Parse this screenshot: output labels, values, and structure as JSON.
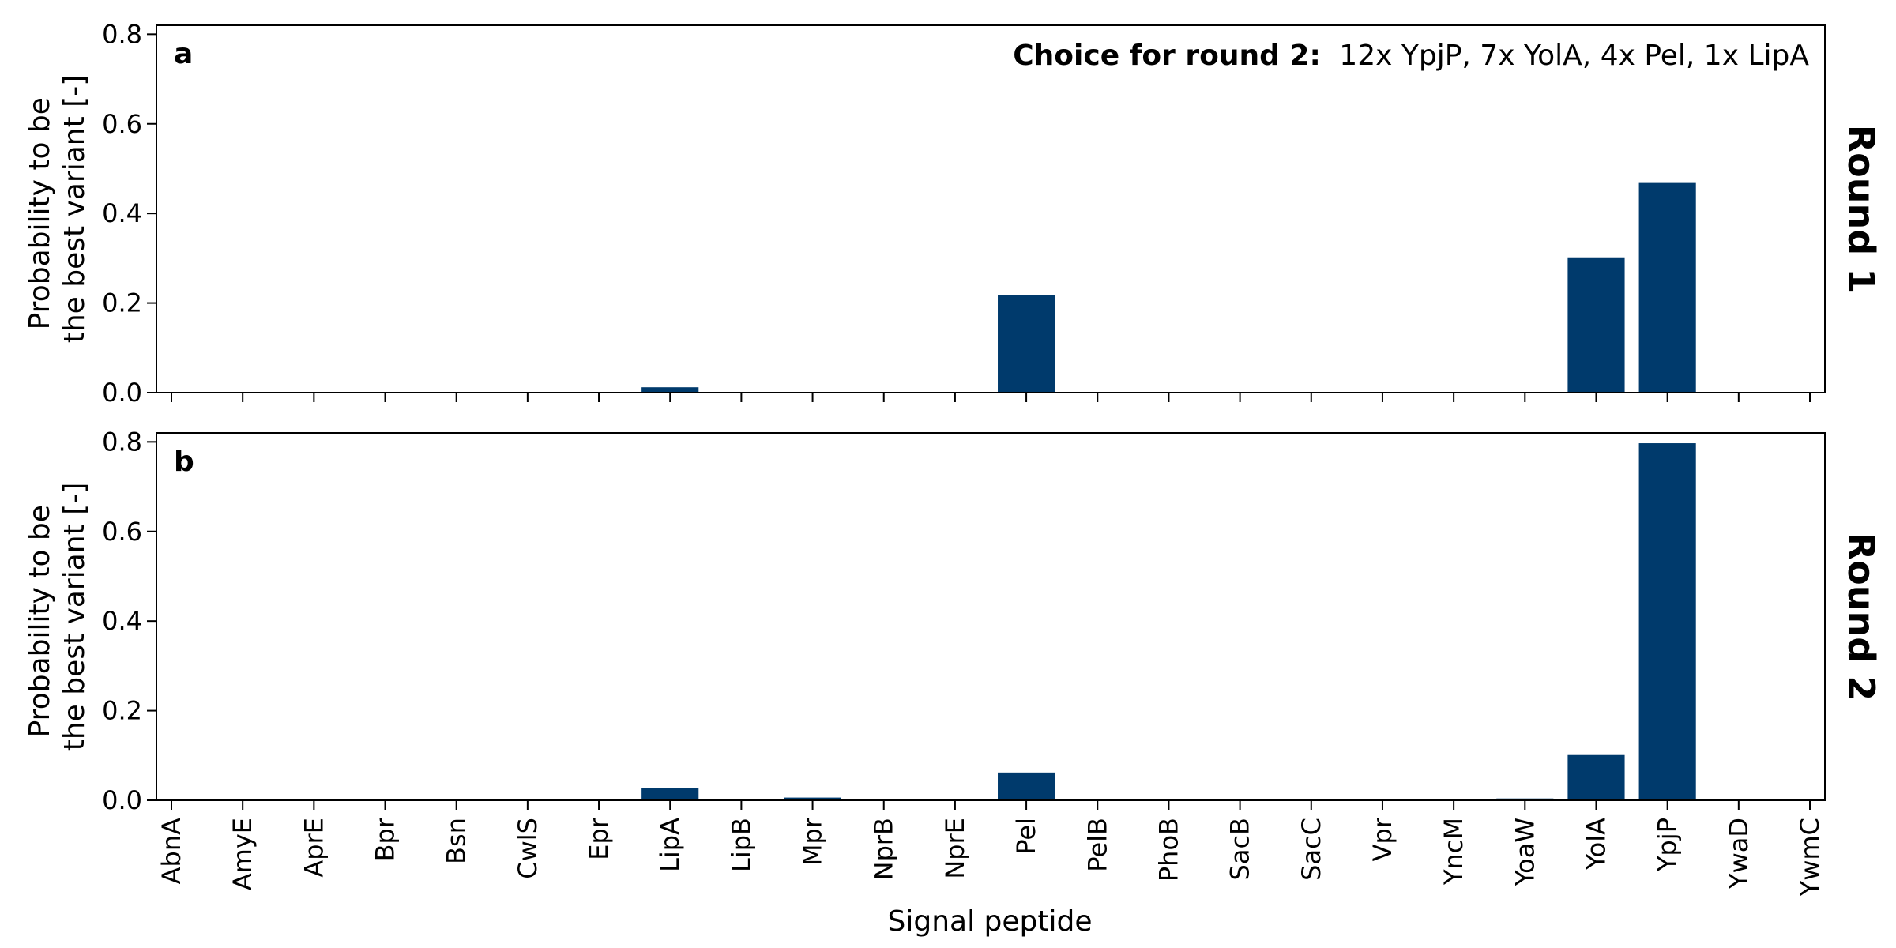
{
  "figure": {
    "xlabel": "Signal peptide",
    "bar_color": "#003a6c"
  },
  "chart_data": [
    {
      "type": "bar",
      "panel_letter": "a",
      "side_label": "Round 1",
      "ylabel_lines": [
        "Probability to be",
        "the best variant [-]"
      ],
      "annotation": {
        "bold": "Choice for round 2:",
        "text": "12x YpjP, 7x YolA, 4x Pel, 1x LipA"
      },
      "ylim": [
        0,
        0.82
      ],
      "yticks": [
        0.0,
        0.2,
        0.4,
        0.6,
        0.8
      ],
      "ytick_labels": [
        "0.0",
        "0.2",
        "0.4",
        "0.6",
        "0.8"
      ],
      "categories": [
        "AbnA",
        "AmyE",
        "AprE",
        "Bpr",
        "Bsn",
        "CwlS",
        "Epr",
        "LipA",
        "LipB",
        "Mpr",
        "NprB",
        "NprE",
        "Pel",
        "PelB",
        "PhoB",
        "SacB",
        "SacC",
        "Vpr",
        "YncM",
        "YoaW",
        "YolA",
        "YpjP",
        "YwaD",
        "YwmC"
      ],
      "values": [
        0,
        0,
        0,
        0,
        0,
        0,
        0,
        0.012,
        0,
        0,
        0,
        0,
        0.218,
        0,
        0,
        0,
        0,
        0,
        0,
        0,
        0.302,
        0.468,
        0,
        0
      ],
      "show_xtick_labels": false
    },
    {
      "type": "bar",
      "panel_letter": "b",
      "side_label": "Round 2",
      "ylabel_lines": [
        "Probability to be",
        "the best variant [-]"
      ],
      "ylim": [
        0,
        0.82
      ],
      "yticks": [
        0.0,
        0.2,
        0.4,
        0.6,
        0.8
      ],
      "ytick_labels": [
        "0.0",
        "0.2",
        "0.4",
        "0.6",
        "0.8"
      ],
      "categories": [
        "AbnA",
        "AmyE",
        "AprE",
        "Bpr",
        "Bsn",
        "CwlS",
        "Epr",
        "LipA",
        "LipB",
        "Mpr",
        "NprB",
        "NprE",
        "Pel",
        "PelB",
        "PhoB",
        "SacB",
        "SacC",
        "Vpr",
        "YncM",
        "YoaW",
        "YolA",
        "YpjP",
        "YwaD",
        "YwmC"
      ],
      "values": [
        0,
        0,
        0,
        0,
        0,
        0,
        0,
        0.027,
        0,
        0.006,
        0,
        0,
        0.062,
        0,
        0,
        0,
        0,
        0,
        0,
        0.004,
        0.101,
        0.797,
        0,
        0
      ],
      "show_xtick_labels": true
    }
  ]
}
